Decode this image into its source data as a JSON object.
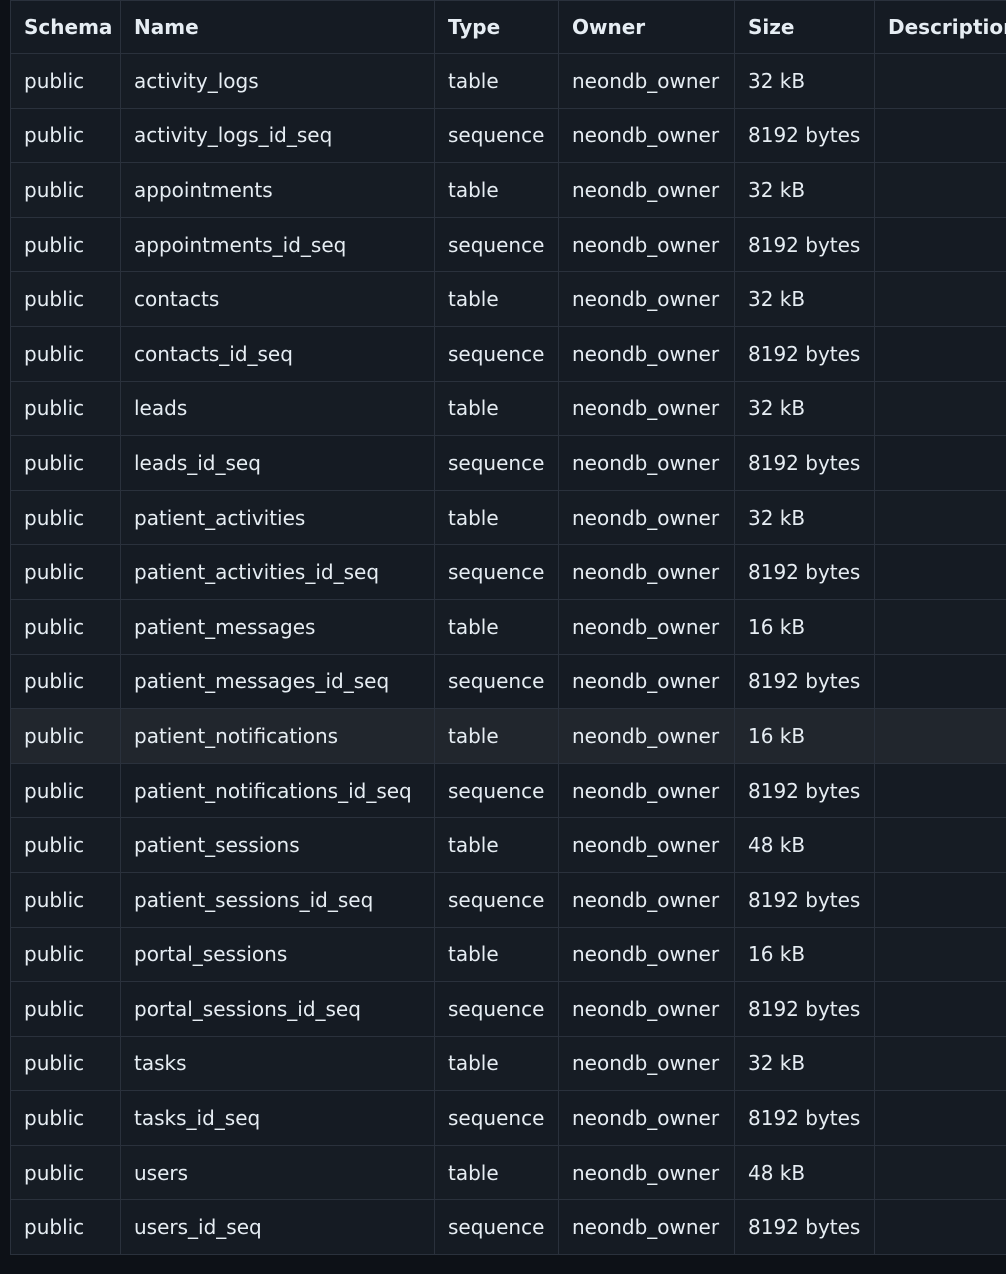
{
  "table": {
    "headers": [
      "Schema",
      "Name",
      "Type",
      "Owner",
      "Size",
      "Description"
    ],
    "rows": [
      [
        "public",
        "activity_logs",
        "table",
        "neondb_owner",
        "32 kB",
        ""
      ],
      [
        "public",
        "activity_logs_id_seq",
        "sequence",
        "neondb_owner",
        "8192 bytes",
        ""
      ],
      [
        "public",
        "appointments",
        "table",
        "neondb_owner",
        "32 kB",
        ""
      ],
      [
        "public",
        "appointments_id_seq",
        "sequence",
        "neondb_owner",
        "8192 bytes",
        ""
      ],
      [
        "public",
        "contacts",
        "table",
        "neondb_owner",
        "32 kB",
        ""
      ],
      [
        "public",
        "contacts_id_seq",
        "sequence",
        "neondb_owner",
        "8192 bytes",
        ""
      ],
      [
        "public",
        "leads",
        "table",
        "neondb_owner",
        "32 kB",
        ""
      ],
      [
        "public",
        "leads_id_seq",
        "sequence",
        "neondb_owner",
        "8192 bytes",
        ""
      ],
      [
        "public",
        "patient_activities",
        "table",
        "neondb_owner",
        "32 kB",
        ""
      ],
      [
        "public",
        "patient_activities_id_seq",
        "sequence",
        "neondb_owner",
        "8192 bytes",
        ""
      ],
      [
        "public",
        "patient_messages",
        "table",
        "neondb_owner",
        "16 kB",
        ""
      ],
      [
        "public",
        "patient_messages_id_seq",
        "sequence",
        "neondb_owner",
        "8192 bytes",
        ""
      ],
      [
        "public",
        "patient_notifications",
        "table",
        "neondb_owner",
        "16 kB",
        ""
      ],
      [
        "public",
        "patient_notifications_id_seq",
        "sequence",
        "neondb_owner",
        "8192 bytes",
        ""
      ],
      [
        "public",
        "patient_sessions",
        "table",
        "neondb_owner",
        "48 kB",
        ""
      ],
      [
        "public",
        "patient_sessions_id_seq",
        "sequence",
        "neondb_owner",
        "8192 bytes",
        ""
      ],
      [
        "public",
        "portal_sessions",
        "table",
        "neondb_owner",
        "16 kB",
        ""
      ],
      [
        "public",
        "portal_sessions_id_seq",
        "sequence",
        "neondb_owner",
        "8192 bytes",
        ""
      ],
      [
        "public",
        "tasks",
        "table",
        "neondb_owner",
        "32 kB",
        ""
      ],
      [
        "public",
        "tasks_id_seq",
        "sequence",
        "neondb_owner",
        "8192 bytes",
        ""
      ],
      [
        "public",
        "users",
        "table",
        "neondb_owner",
        "48 kB",
        ""
      ],
      [
        "public",
        "users_id_seq",
        "sequence",
        "neondb_owner",
        "8192 bytes",
        ""
      ]
    ],
    "highlighted_row": 12
  },
  "colors": {
    "background": "#0d1117",
    "cell": "#151b23",
    "border": "#2a313c",
    "text": "#e6edf3",
    "hover_row": "#21262d"
  }
}
